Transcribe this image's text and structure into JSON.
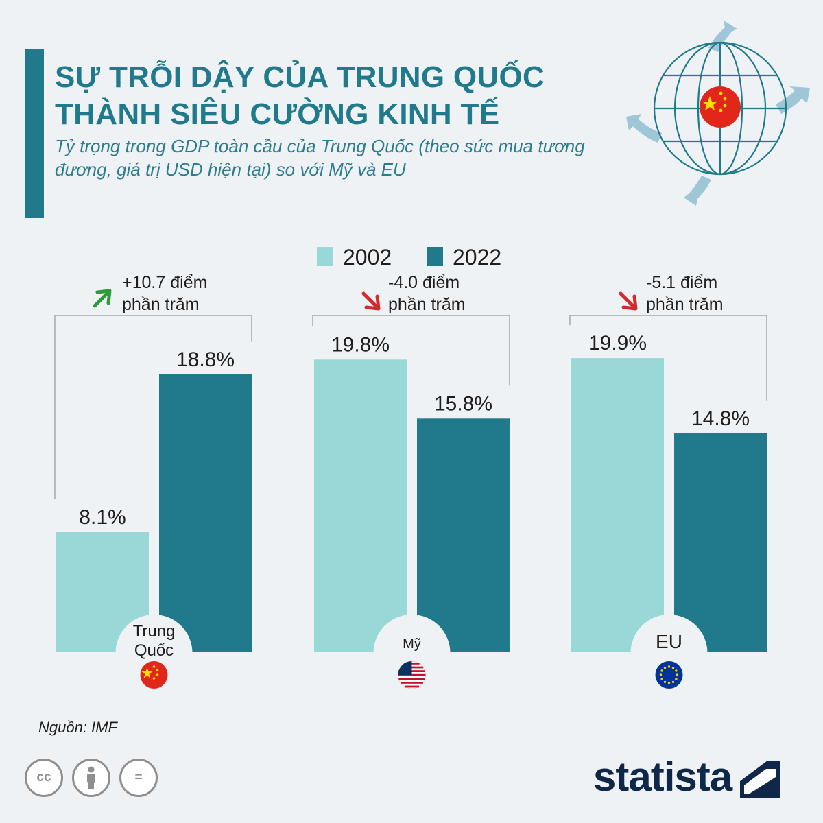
{
  "header": {
    "title_line1": "SỰ TRỖI DẬY CỦA TRUNG QUỐC",
    "title_line2": "THÀNH SIÊU CƯỜNG KINH TẾ",
    "subtitle": "Tỷ trọng trong GDP toàn cầu của Trung Quốc (theo sức mua tương đương, giá trị USD hiện tại) so với Mỹ và EU"
  },
  "colors": {
    "accent": "#217a8b",
    "series_2002": "#98d9d7",
    "series_2022": "#217a8b",
    "up_arrow": "#2e9b3a",
    "down_arrow": "#d42a2f",
    "logo": "#0f2748"
  },
  "chart_data": {
    "type": "bar",
    "unit": "%",
    "categories": [
      "Trung Quốc",
      "Mỹ",
      "EU"
    ],
    "category_labels": [
      [
        "Trung",
        "Quốc"
      ],
      [
        "Mỹ"
      ],
      [
        "EU"
      ]
    ],
    "series": [
      {
        "name": "2002",
        "values": [
          8.1,
          19.8,
          19.9
        ],
        "labels": [
          "8.1%",
          "19.8%",
          "19.9%"
        ]
      },
      {
        "name": "2022",
        "values": [
          18.8,
          15.8,
          14.8
        ],
        "labels": [
          "18.8%",
          "15.8%",
          "14.8%"
        ]
      }
    ],
    "changes": [
      {
        "direction": "up",
        "line1": "+10.7 điểm",
        "line2": "phần trăm"
      },
      {
        "direction": "down",
        "line1": "-4.0 điểm",
        "line2": "phần trăm"
      },
      {
        "direction": "down",
        "line1": "-5.1 điểm",
        "line2": "phần trăm"
      }
    ],
    "flags": [
      "china-flag-icon",
      "usa-flag-icon",
      "eu-flag-icon"
    ],
    "legend_position": "top-center",
    "grid": false,
    "ylim": [
      0,
      25
    ]
  },
  "footer": {
    "source": "Nguồn: IMF",
    "cc_icon": "cc",
    "nd_icon": "=",
    "brand": "statista"
  },
  "icons": [
    "globe-arrows-icon",
    "cc-icon",
    "attribution-icon",
    "no-derivatives-icon",
    "statista-logo-icon"
  ]
}
